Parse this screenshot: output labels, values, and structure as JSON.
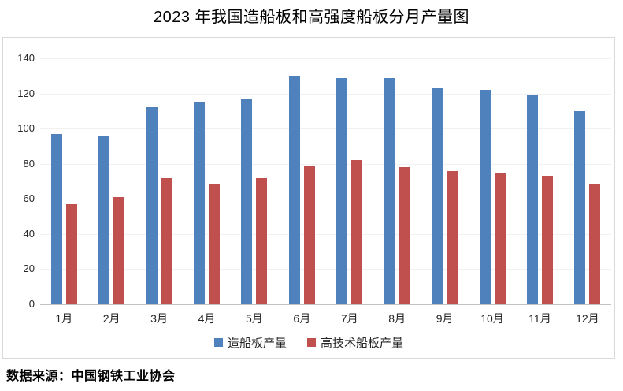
{
  "page": {
    "title": "2023 年我国造船板和高强度船板分月产量图",
    "source_note": "数据来源：中国钢铁工业协会"
  },
  "chart_data": {
    "type": "bar",
    "title": "2023 年我国造船板和高强度船板分月产量图",
    "categories": [
      "1月",
      "2月",
      "3月",
      "4月",
      "5月",
      "6月",
      "7月",
      "8月",
      "9月",
      "10月",
      "11月",
      "12月"
    ],
    "series": [
      {
        "name": "造船板产量",
        "color": "#4F81BD",
        "values": [
          97,
          96,
          112,
          115,
          117,
          130,
          129,
          129,
          123,
          122,
          119,
          110
        ]
      },
      {
        "name": "高技术船板产量",
        "color": "#C0504D",
        "values": [
          57,
          61,
          72,
          68,
          72,
          79,
          82,
          78,
          76,
          75,
          73,
          68
        ]
      }
    ],
    "xlabel": "",
    "ylabel": "",
    "ylim": [
      0,
      140
    ],
    "yticks": [
      0,
      20,
      40,
      60,
      80,
      100,
      120,
      140
    ],
    "grid": true,
    "legend_position": "bottom",
    "source_note": "数据来源：中国钢铁工业协会"
  }
}
